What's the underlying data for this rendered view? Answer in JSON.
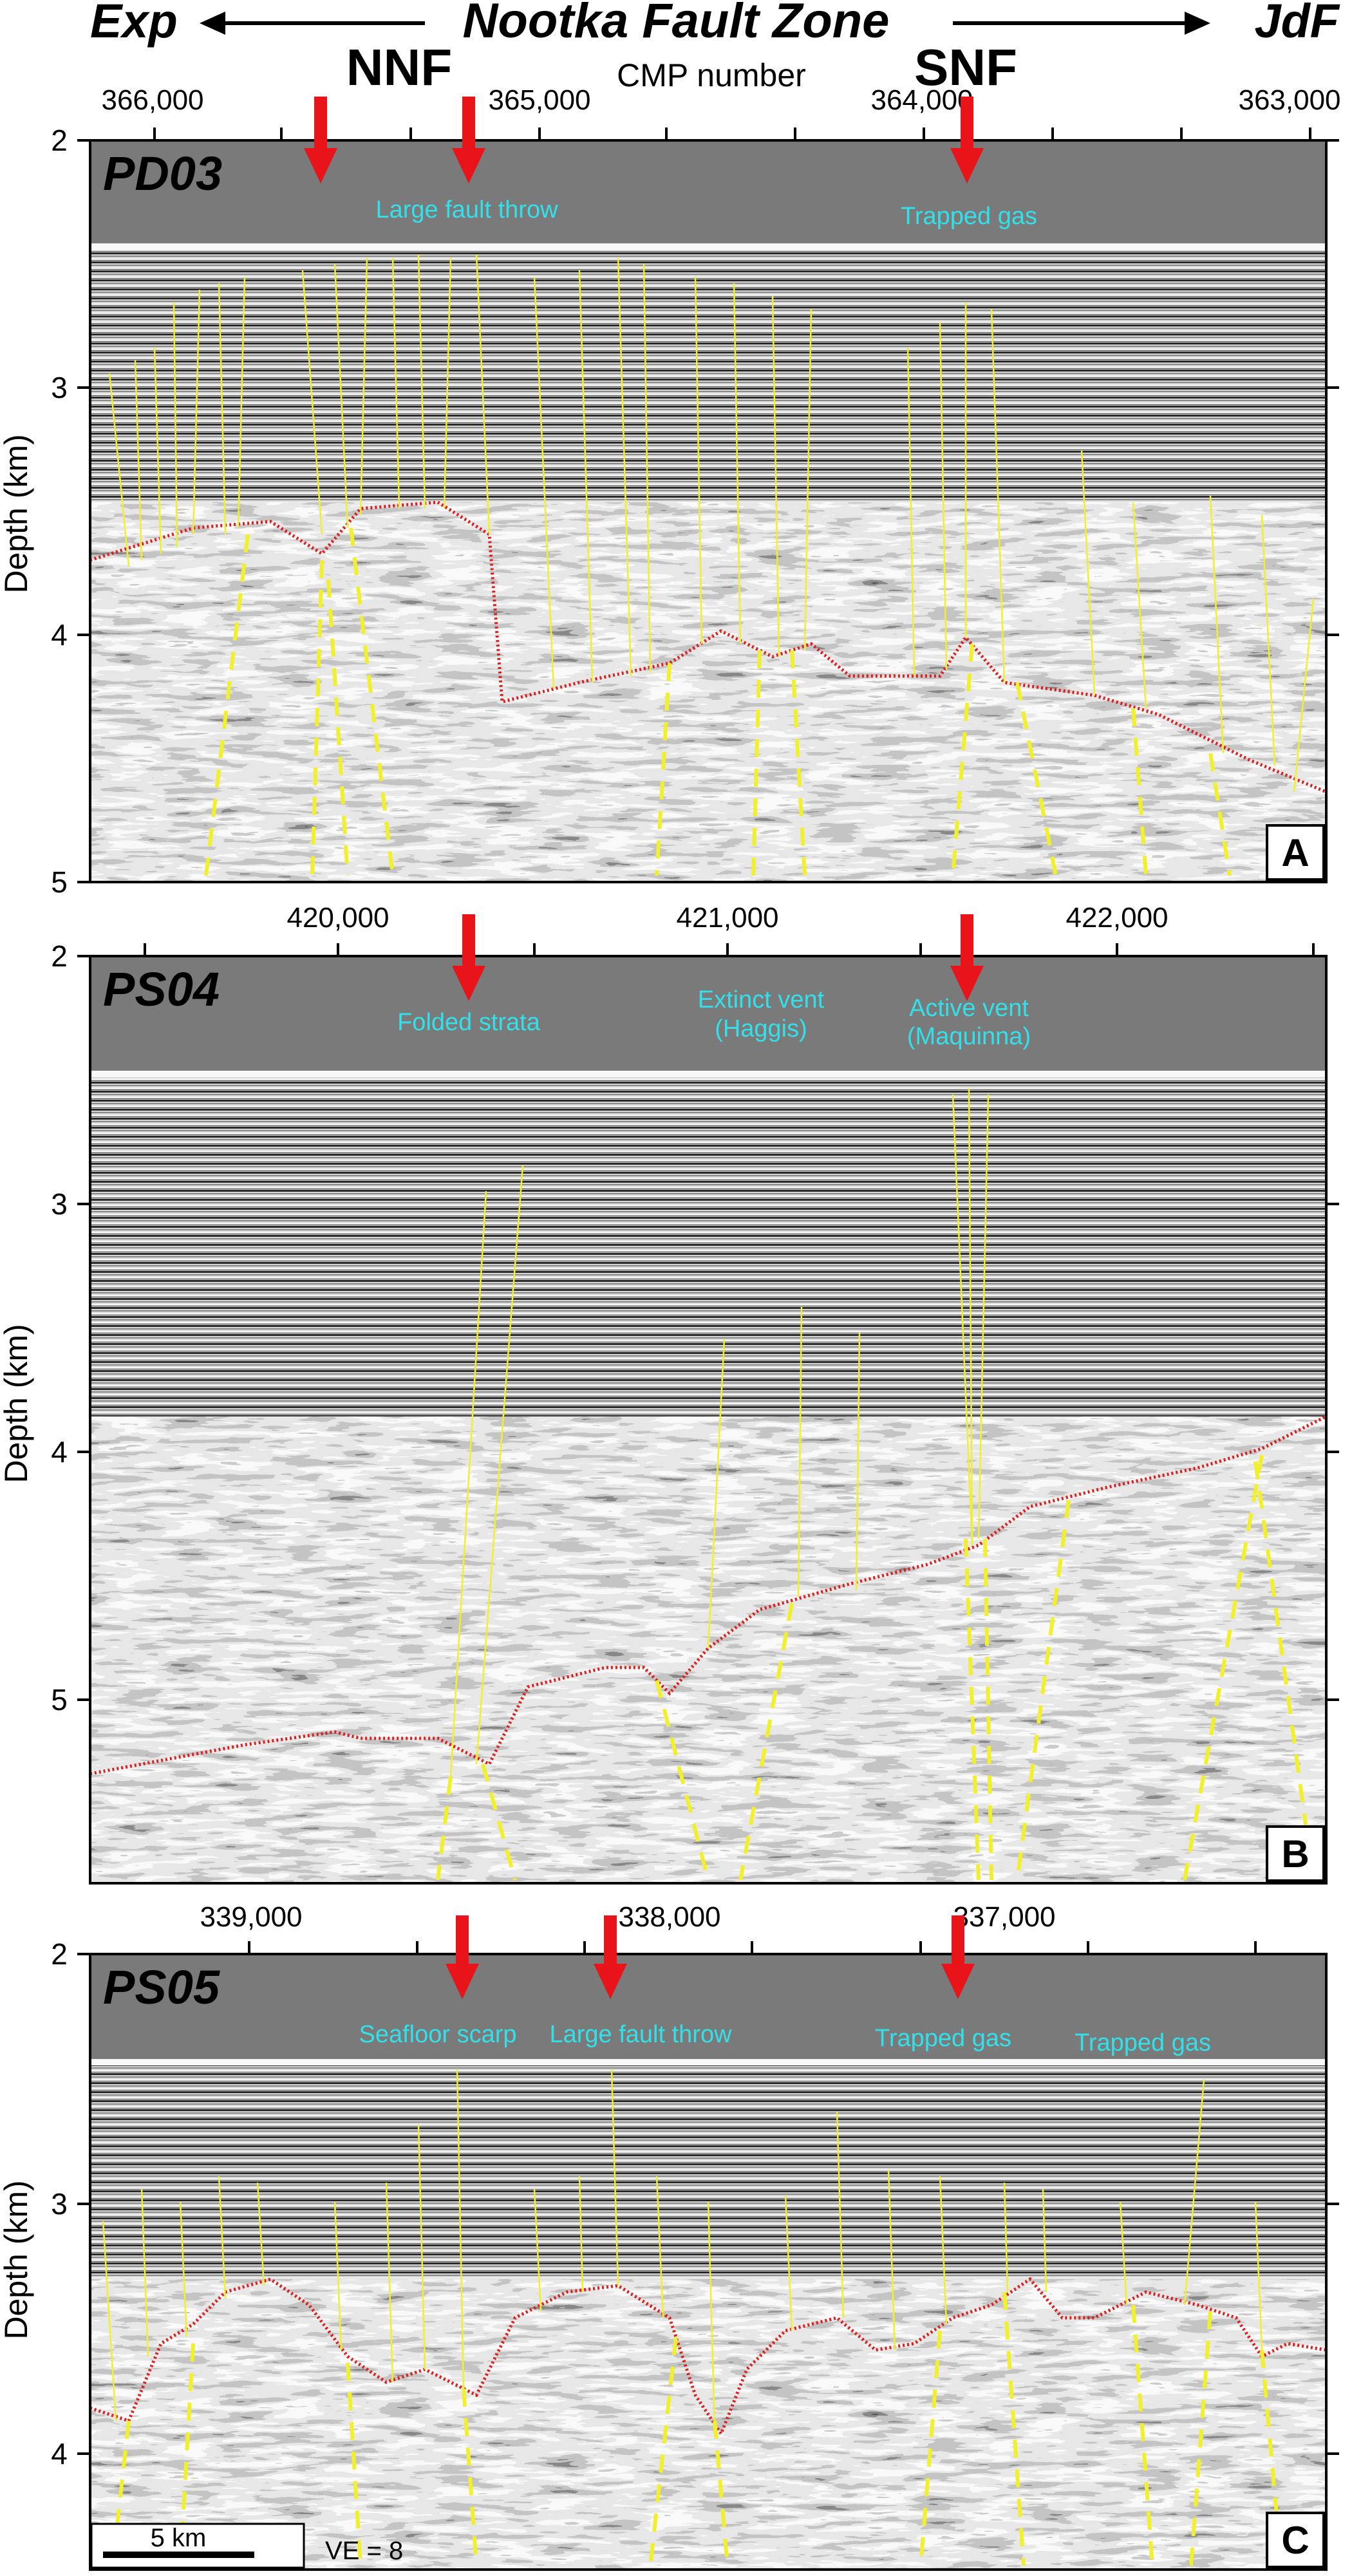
{
  "header": {
    "left_label": "Exp",
    "center_label": "Nootka Fault Zone",
    "right_label": "JdF",
    "nnf_label": "NNF",
    "snf_label": "SNF",
    "x_axis_label": "CMP number"
  },
  "y_axis_label": "Depth (km)",
  "panels": [
    {
      "id": "A",
      "line": "PD03",
      "letter": "A",
      "cmp_ticks": [
        "366,000",
        "365,000",
        "364,000",
        "363,000"
      ],
      "depth_ticks": [
        "2",
        "3",
        "4",
        "5"
      ],
      "annotations": [
        "Large fault throw",
        "Trapped gas"
      ]
    },
    {
      "id": "B",
      "line": "PS04",
      "letter": "B",
      "cmp_ticks": [
        "420,000",
        "421,000",
        "422,000"
      ],
      "depth_ticks": [
        "2",
        "3",
        "4",
        "5"
      ],
      "annotations": [
        "Folded strata",
        "Extinct vent",
        "(Haggis)",
        "Active vent",
        "(Maquinna)"
      ]
    },
    {
      "id": "C",
      "line": "PS05",
      "letter": "C",
      "cmp_ticks": [
        "339,000",
        "338,000",
        "337,000"
      ],
      "depth_ticks": [
        "2",
        "3",
        "4"
      ],
      "annotations": [
        "Seafloor scarp",
        "Large fault throw",
        "Trapped gas",
        "Trapped gas"
      ]
    }
  ],
  "scale_bar": {
    "label": "5 km",
    "ve": "VE = 8"
  },
  "colors": {
    "water": "#7a7a7a",
    "annotation": "#33e0ea",
    "arrow": "#e8141a",
    "fault": "#f2ef2c",
    "basement": "#d9201f"
  }
}
